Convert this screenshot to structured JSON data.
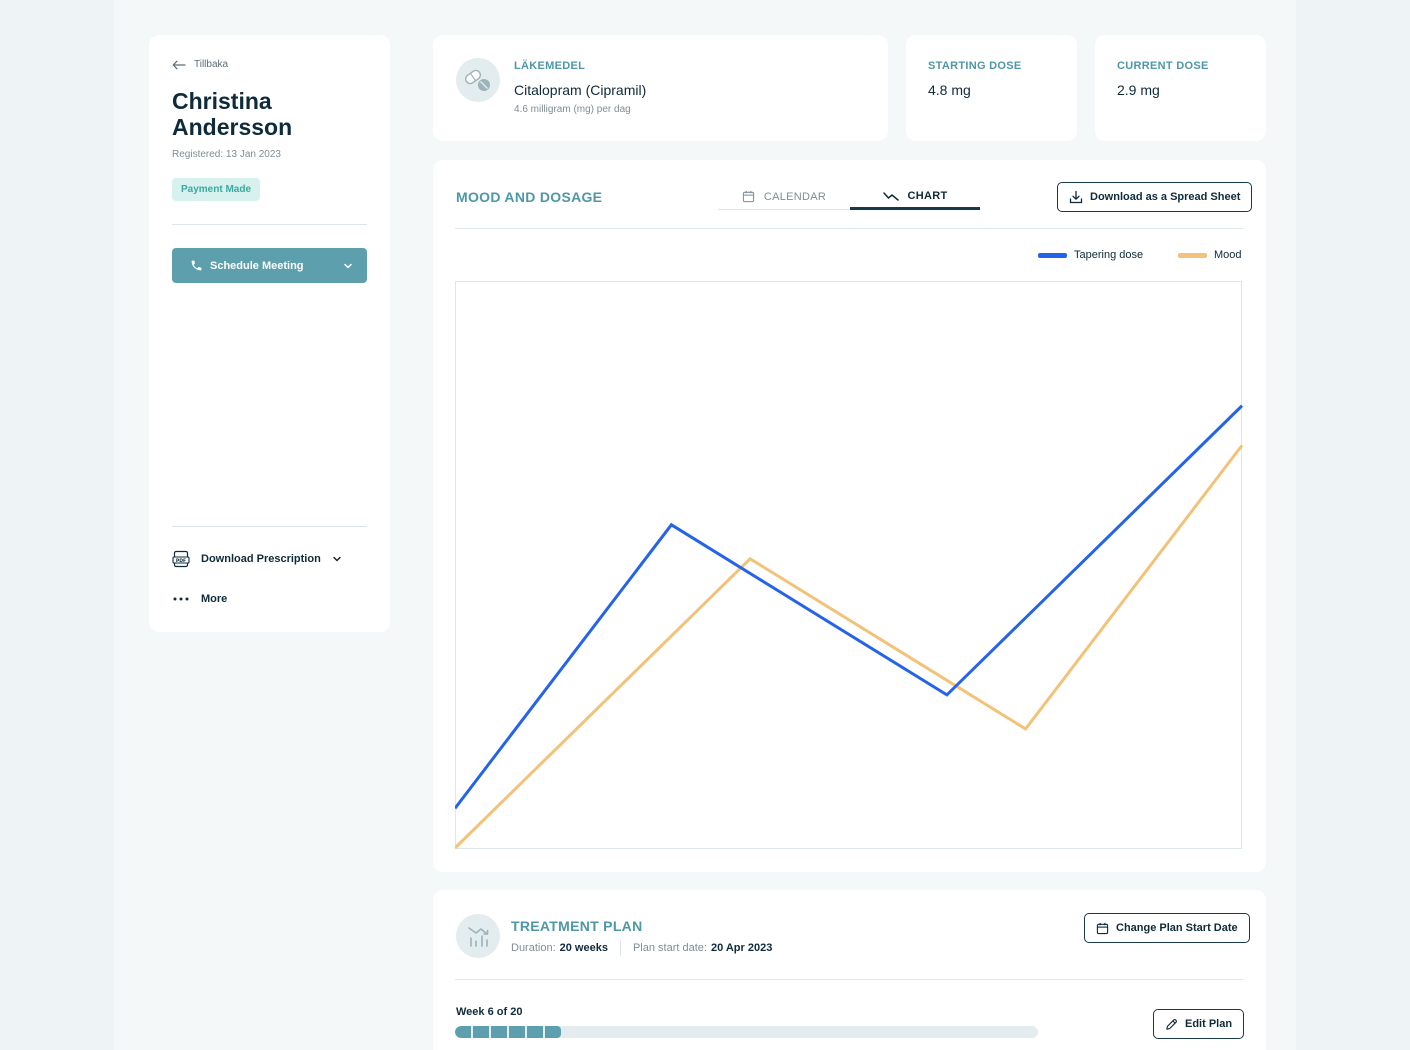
{
  "sidebar": {
    "back_label": "Tillbaka",
    "patient_name": "Christina Andersson",
    "registered": "Registered: 13 Jan 2023",
    "payment_badge": "Payment Made",
    "schedule_label": "Schedule Meeting",
    "download_prescription_label": "Download Prescription",
    "more_label": "More"
  },
  "medication": {
    "label": "LÄKEMEDEL",
    "name": "Citalopram (Cipramil)",
    "dosage_note": "4.6 milligram (mg) per dag"
  },
  "starting_dose": {
    "label": "STARTING DOSE",
    "value": "4.8 mg"
  },
  "current_dose": {
    "label": "CURRENT DOSE",
    "value": "2.9 mg"
  },
  "chart_section": {
    "title": "MOOD AND DOSAGE",
    "tabs": [
      {
        "label": "CALENDAR",
        "icon": "calendar-icon",
        "active": false
      },
      {
        "label": "CHART",
        "icon": "line-chart-icon",
        "active": true
      }
    ],
    "download_label": "Download as a Spread Sheet"
  },
  "chart_data": {
    "type": "line",
    "x": [
      0,
      1,
      2,
      3,
      4
    ],
    "ylim": [
      0,
      100
    ],
    "xlim": [
      0,
      4
    ],
    "grid": false,
    "legend_position": "top-right",
    "series": [
      {
        "name": "Tapering dose",
        "color": "#2563e8",
        "x": [
          0,
          1.1,
          2.5,
          4
        ],
        "values": [
          7,
          57,
          27,
          78
        ]
      },
      {
        "name": "Mood",
        "color": "#f3c27a",
        "x": [
          0,
          1.5,
          2.9,
          4
        ],
        "values": [
          0,
          51,
          21,
          71
        ]
      }
    ]
  },
  "treatment_plan": {
    "title": "TREATMENT PLAN",
    "duration_label": "Duration:",
    "duration_value": "20 weeks",
    "start_label": "Plan start date:",
    "start_value": "20 Apr 2023",
    "change_start_label": "Change Plan Start Date",
    "week_label": "Week 6 of 20",
    "current_week": 6,
    "total_weeks": 20,
    "edit_label": "Edit Plan"
  },
  "colors": {
    "accent": "#4e97a6",
    "button": "#5d9fad",
    "dark": "#0f2a3a",
    "badge_bg": "#d7f1ee",
    "badge_text": "#3aa99e"
  }
}
